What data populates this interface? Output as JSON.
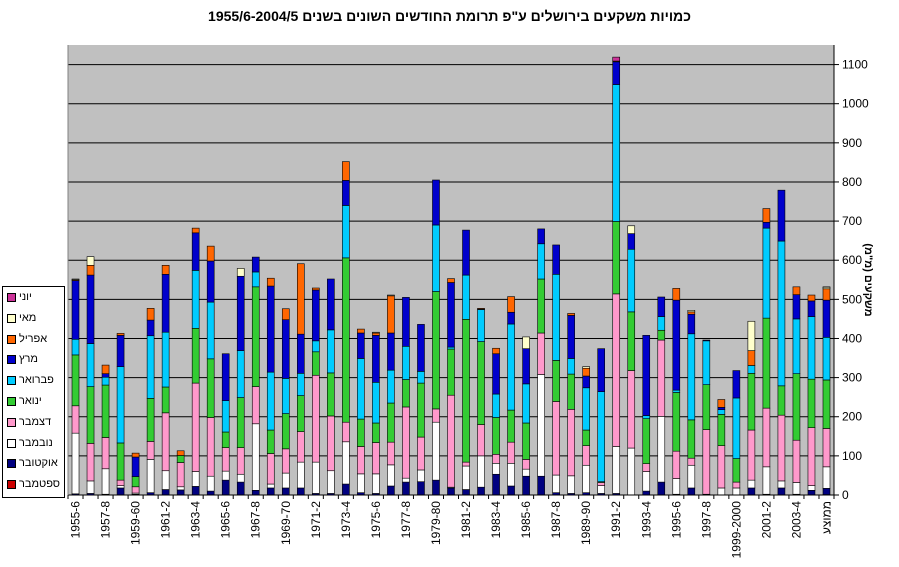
{
  "chart_data": {
    "type": "bar",
    "stacked": true,
    "title": "כמויות משקעים בירושלים ע\"פ תרומת החודשים השונים בשנים 1955/6-2004/5",
    "ylabel": "משקעים (מ\"מ)",
    "ylim": [
      0,
      1150
    ],
    "yticks": [
      0,
      100,
      200,
      300,
      400,
      500,
      600,
      700,
      800,
      900,
      1000,
      1100
    ],
    "legend_position": "left",
    "grid": true,
    "categories": [
      "1955-6",
      "1956-7",
      "1957-8",
      "1958-9",
      "1959-60",
      "1960-1",
      "1961-2",
      "1962-3",
      "1963-4",
      "1964-5",
      "1965-6",
      "1966-7",
      "1967-8",
      "1968-9",
      "1969-70",
      "1970-1",
      "1971-2",
      "1972-3",
      "1973-4",
      "1974-5",
      "1975-6",
      "1976-7",
      "1977-8",
      "1978-9",
      "1979-80",
      "1980-1",
      "1981-2",
      "1982-3",
      "1983-4",
      "1984-5",
      "1985-6",
      "1986-7",
      "1987-8",
      "1988-9",
      "1989-90",
      "1990-1",
      "1991-2",
      "1992-3",
      "1993-4",
      "1994-5",
      "1995-6",
      "1996-7",
      "1997-8",
      "1998-9",
      "1999-2000",
      "2000-1",
      "2001-2",
      "2002-3",
      "2003-4",
      "2004-5",
      "ממוצע"
    ],
    "x_tick_labels": [
      "1955-6",
      "1957-8",
      "1959-60",
      "1961-2",
      "1963-4",
      "1965-6",
      "1967-8",
      "1969-70",
      "1971-2",
      "1973-4",
      "1975-6",
      "1977-8",
      "1979-80",
      "1981-2",
      "1983-4",
      "1985-6",
      "1987-8",
      "1989-90",
      "1991-2",
      "1993-4",
      "1995-6",
      "1997-8",
      "1999-2000",
      "2001-2",
      "2003-4",
      "ממוצע"
    ],
    "series": [
      {
        "name": "ספטמבר",
        "color": "#CC0000",
        "values": [
          0,
          0,
          0,
          0,
          0,
          0,
          0,
          0,
          0,
          0,
          0,
          0,
          0,
          0,
          0,
          0,
          0,
          0,
          0,
          0,
          0,
          0,
          0,
          0,
          0,
          0,
          0,
          0,
          0,
          0,
          0,
          0,
          0,
          0,
          0,
          0,
          0,
          0,
          0,
          0,
          0,
          0,
          0,
          0,
          0,
          0,
          0,
          0,
          0,
          0,
          1
        ]
      },
      {
        "name": "אוקטובר",
        "color": "#000080",
        "values": [
          3,
          4,
          2,
          18,
          2,
          6,
          14,
          13,
          22,
          10,
          38,
          33,
          12,
          18,
          18,
          18,
          4,
          4,
          28,
          6,
          4,
          23,
          33,
          34,
          38,
          18,
          14,
          20,
          53,
          23,
          48,
          48,
          6,
          4,
          6,
          4,
          4,
          0,
          10,
          33,
          2,
          18,
          2,
          0,
          0,
          18,
          2,
          18,
          2,
          12,
          16
        ]
      },
      {
        "name": "נובמבר",
        "color": "#FFFFFF",
        "values": [
          155,
          32,
          65,
          6,
          3,
          85,
          48,
          8,
          38,
          38,
          23,
          20,
          170,
          10,
          38,
          66,
          80,
          58,
          108,
          48,
          50,
          54,
          10,
          30,
          148,
          2,
          60,
          80,
          28,
          58,
          18,
          260,
          45,
          45,
          70,
          20,
          120,
          120,
          50,
          168,
          40,
          58,
          0,
          18,
          18,
          20,
          70,
          18,
          30,
          12,
          55
        ]
      },
      {
        "name": "דצמבר",
        "color": "#FF99CC",
        "values": [
          70,
          96,
          80,
          14,
          16,
          46,
          148,
          62,
          226,
          150,
          60,
          68,
          95,
          78,
          62,
          78,
          222,
          140,
          50,
          70,
          80,
          58,
          182,
          84,
          34,
          235,
          10,
          80,
          23,
          54,
          25,
          106,
          188,
          170,
          50,
          8,
          390,
          198,
          20,
          195,
          70,
          18,
          165,
          108,
          15,
          128,
          150,
          168,
          108,
          148,
          98
        ]
      },
      {
        "name": "ינואר",
        "color": "#33CC33",
        "values": [
          130,
          145,
          134,
          95,
          26,
          110,
          66,
          18,
          140,
          150,
          40,
          128,
          255,
          60,
          90,
          92,
          60,
          110,
          420,
          70,
          50,
          100,
          70,
          138,
          300,
          118,
          365,
          212,
          94,
          82,
          93,
          138,
          105,
          90,
          40,
          2,
          185,
          150,
          115,
          25,
          150,
          98,
          115,
          80,
          60,
          145,
          230,
          75,
          170,
          124,
          124
        ]
      },
      {
        "name": "פברואר",
        "color": "#00CCFF",
        "values": [
          40,
          110,
          20,
          195,
          0,
          160,
          140,
          0,
          148,
          145,
          80,
          120,
          38,
          148,
          90,
          57,
          28,
          110,
          134,
          155,
          104,
          84,
          85,
          30,
          170,
          5,
          113,
          82,
          60,
          220,
          100,
          90,
          220,
          40,
          108,
          230,
          350,
          160,
          8,
          35,
          6,
          220,
          112,
          12,
          155,
          20,
          230,
          370,
          140,
          160,
          109
        ]
      },
      {
        "name": "מרץ",
        "color": "#0000CC",
        "values": [
          150,
          175,
          9,
          80,
          50,
          40,
          148,
          0,
          96,
          105,
          120,
          190,
          38,
          220,
          150,
          100,
          130,
          130,
          64,
          65,
          120,
          95,
          125,
          120,
          115,
          165,
          115,
          1,
          103,
          30,
          90,
          38,
          75,
          110,
          30,
          110,
          58,
          40,
          205,
          50,
          230,
          50,
          2,
          6,
          70,
          0,
          15,
          130,
          62,
          40,
          95
        ]
      },
      {
        "name": "אפריל",
        "color": "#FF6600",
        "values": [
          2,
          25,
          22,
          5,
          10,
          30,
          23,
          12,
          12,
          38,
          0,
          0,
          0,
          20,
          28,
          180,
          5,
          0,
          48,
          10,
          6,
          95,
          0,
          0,
          0,
          10,
          0,
          2,
          14,
          40,
          0,
          0,
          0,
          5,
          20,
          0,
          2,
          0,
          0,
          0,
          30,
          6,
          0,
          20,
          0,
          38,
          35,
          0,
          20,
          15,
          29
        ]
      },
      {
        "name": "מאי",
        "color": "#FFFFCC",
        "values": [
          2,
          22,
          0,
          0,
          0,
          0,
          0,
          0,
          0,
          0,
          0,
          20,
          0,
          0,
          0,
          0,
          0,
          0,
          0,
          0,
          2,
          2,
          0,
          0,
          0,
          0,
          0,
          0,
          0,
          0,
          30,
          0,
          0,
          0,
          4,
          0,
          0,
          20,
          0,
          0,
          0,
          4,
          0,
          0,
          0,
          75,
          0,
          0,
          0,
          0,
          4
        ]
      },
      {
        "name": "יוני",
        "color": "#CC3399",
        "values": [
          0,
          0,
          0,
          0,
          0,
          0,
          0,
          0,
          0,
          0,
          0,
          0,
          0,
          0,
          0,
          0,
          0,
          0,
          0,
          0,
          0,
          0,
          0,
          0,
          0,
          0,
          0,
          0,
          0,
          0,
          0,
          0,
          0,
          0,
          0,
          0,
          10,
          0,
          0,
          0,
          0,
          0,
          0,
          0,
          0,
          0,
          0,
          0,
          0,
          0,
          1
        ]
      }
    ]
  }
}
